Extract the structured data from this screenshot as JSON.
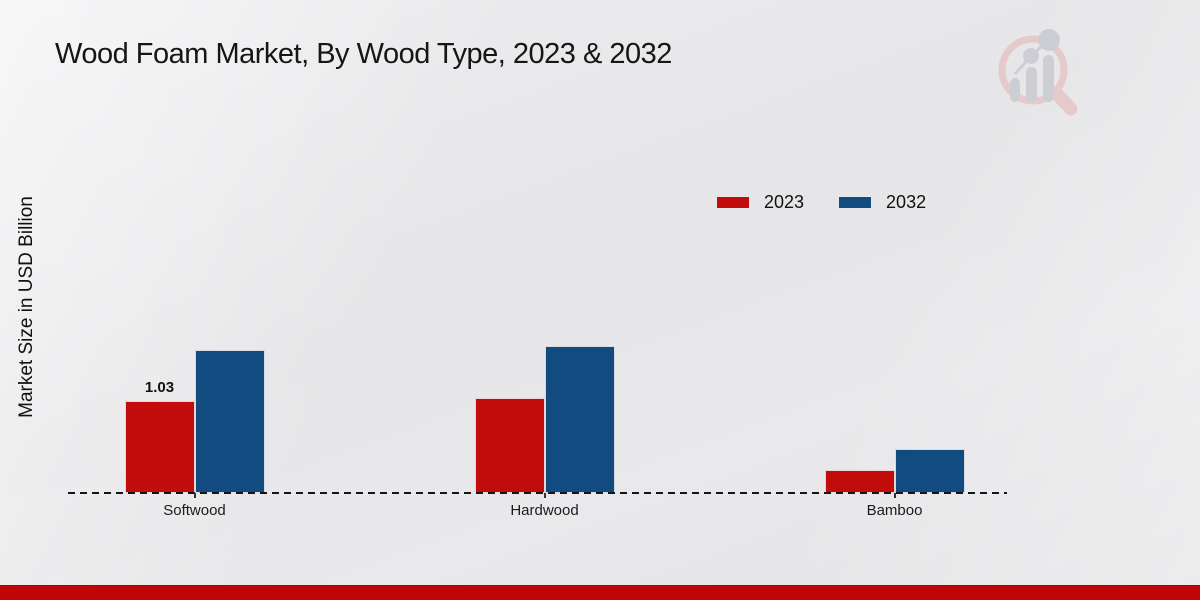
{
  "title": "Wood Foam Market, By Wood Type, 2023 & 2032",
  "ylabel": "Market Size in USD Billion",
  "chart_data": {
    "type": "bar",
    "categories": [
      "Softwood",
      "Hardwood",
      "Bamboo"
    ],
    "series": [
      {
        "name": "2023",
        "color": "#c20c0c",
        "values": [
          1.03,
          1.06,
          0.26
        ],
        "labels": [
          "1.03",
          "",
          ""
        ]
      },
      {
        "name": "2032",
        "color": "#124b80",
        "values": [
          1.6,
          1.65,
          0.49
        ],
        "labels": [
          "",
          "",
          ""
        ]
      }
    ],
    "title": "Wood Foam Market, By Wood Type, 2023 & 2032",
    "xlabel": "",
    "ylabel": "Market Size in USD Billion",
    "ylim": [
      0,
      1.8
    ],
    "grid": false,
    "axis_style": "dashed-baseline-only",
    "legend_position": "upper-right-inside",
    "legend": [
      "2023",
      "2032"
    ]
  },
  "colors": {
    "bar_2023": "#c20c0c",
    "bar_2032": "#124b80",
    "footer_bar": "#bf0505",
    "axis": "#151515",
    "watermark_pink": "#e5c9cb",
    "watermark_gray": "#cdced3"
  },
  "watermark": "market-research-future-logo"
}
